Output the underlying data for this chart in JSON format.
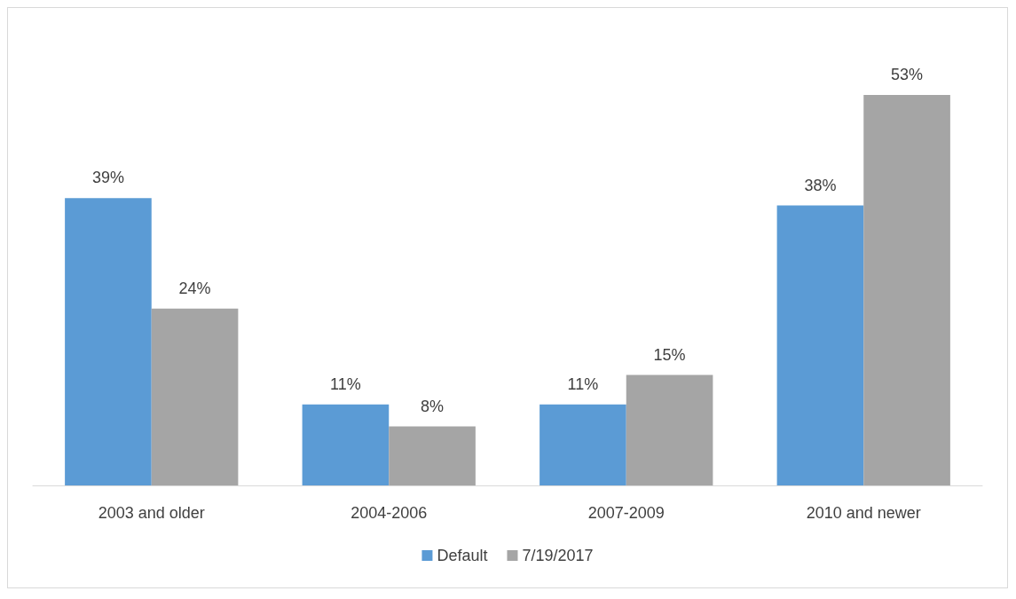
{
  "chart_data": {
    "type": "bar",
    "categories": [
      "2003 and older",
      "2004-2006",
      "2007-2009",
      "2010 and newer"
    ],
    "series": [
      {
        "name": "Default",
        "color": "#5b9bd5",
        "values": [
          39,
          11,
          11,
          38
        ],
        "value_labels": [
          "39%",
          "11%",
          "11%",
          "38%"
        ]
      },
      {
        "name": "7/19/2017",
        "color": "#a5a5a5",
        "values": [
          24,
          8,
          15,
          53
        ],
        "value_labels": [
          "24%",
          "8%",
          "15%",
          "53%"
        ]
      }
    ],
    "grid": false,
    "legend": "bottom"
  }
}
